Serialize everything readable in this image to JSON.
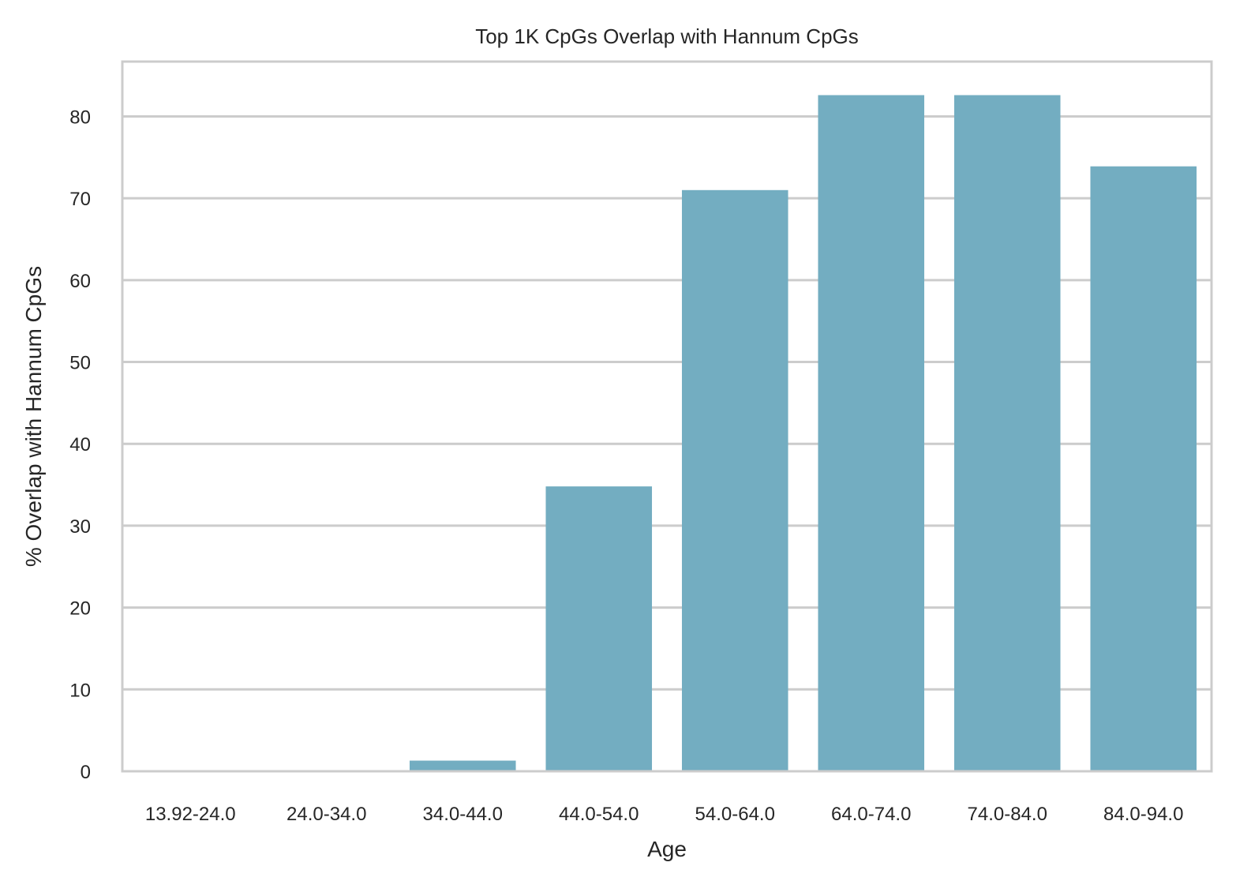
{
  "chart_data": {
    "type": "bar",
    "title": "Top 1K CpGs Overlap with Hannum CpGs",
    "xlabel": "Age",
    "ylabel": "% Overlap with Hannum CpGs",
    "categories": [
      "13.92-24.0",
      "24.0-34.0",
      "34.0-44.0",
      "44.0-54.0",
      "54.0-64.0",
      "64.0-74.0",
      "74.0-84.0",
      "84.0-94.0"
    ],
    "values": [
      0,
      0,
      1.3,
      34.8,
      71.0,
      82.6,
      82.6,
      73.9
    ],
    "ylim": [
      0,
      86.7
    ],
    "yticks": [
      0,
      10,
      20,
      30,
      40,
      50,
      60,
      70,
      80
    ],
    "grid": true,
    "colors": {
      "bar": "#73adc1",
      "grid": "#cccccc",
      "frame": "#cccccc",
      "text": "#262626"
    }
  }
}
